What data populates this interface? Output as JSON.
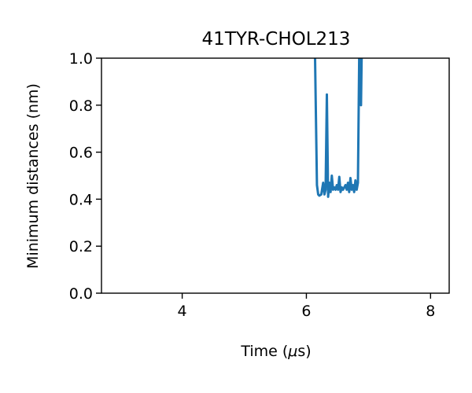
{
  "chart_data": {
    "type": "line",
    "title": "41TYR-CHOL213",
    "xlabel_prefix": "Time (",
    "xlabel_mu": "μ",
    "xlabel_suffix": "s)",
    "ylabel": "Minimum distances (nm)",
    "xlim": [
      2.7,
      8.3
    ],
    "ylim": [
      0.0,
      1.0
    ],
    "xticks": [
      4,
      6,
      8
    ],
    "yticks": [
      0.0,
      0.2,
      0.4,
      0.6,
      0.8,
      1.0
    ],
    "xtick_labels": [
      "4",
      "6",
      "8"
    ],
    "ytick_labels": [
      "0.0",
      "0.2",
      "0.4",
      "0.6",
      "0.8",
      "1.0"
    ],
    "grid": false,
    "series": [
      {
        "color": "#1f77b4",
        "x": [
          6.14,
          6.17,
          6.19,
          6.21,
          6.24,
          6.27,
          6.29,
          6.31,
          6.33,
          6.35,
          6.37,
          6.39,
          6.41,
          6.43,
          6.45,
          6.47,
          6.49,
          6.51,
          6.53,
          6.55,
          6.57,
          6.59,
          6.61,
          6.63,
          6.65,
          6.67,
          6.69,
          6.71,
          6.73,
          6.75,
          6.77,
          6.79,
          6.81,
          6.83,
          6.85,
          6.86,
          6.87,
          6.88,
          6.89
        ],
        "y": [
          1.0,
          0.46,
          0.42,
          0.415,
          0.42,
          0.47,
          0.42,
          0.44,
          0.845,
          0.41,
          0.47,
          0.43,
          0.5,
          0.44,
          0.45,
          0.44,
          0.46,
          0.44,
          0.495,
          0.43,
          0.45,
          0.44,
          0.45,
          0.46,
          0.44,
          0.47,
          0.43,
          0.49,
          0.44,
          0.46,
          0.43,
          0.48,
          0.44,
          0.47,
          1.0,
          0.82,
          1.0,
          0.8,
          1.0
        ]
      }
    ]
  }
}
